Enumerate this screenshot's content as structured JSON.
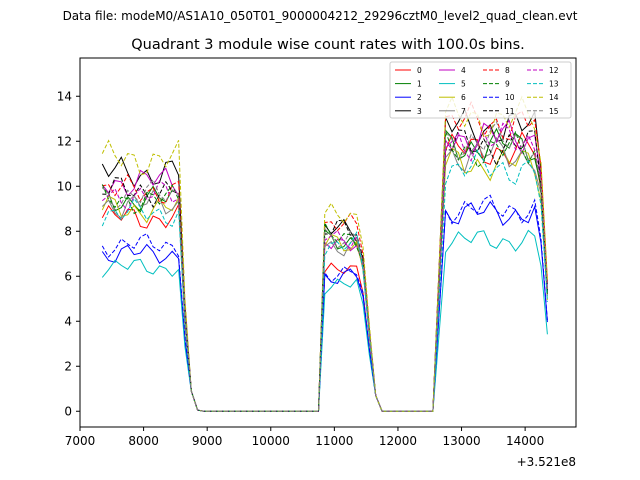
{
  "chart_data": {
    "type": "line",
    "suptitle": "Data file: modeM0/AS1A10_050T01_9000004212_29296cztM0_level2_quad_clean.evt",
    "title": "Quadrant 3 module wise count rates with 100.0s bins.",
    "xlabel": "",
    "ylabel": "",
    "x_offset_label": "+3.521e8",
    "xlim": [
      7000,
      14800
    ],
    "ylim": [
      -0.7,
      15.7
    ],
    "x_ticks": [
      7000,
      8000,
      9000,
      10000,
      11000,
      12000,
      13000,
      14000
    ],
    "x_tick_labels": [
      "7000",
      "8000",
      "9000",
      "10000",
      "11000",
      "12000",
      "13000",
      "14000"
    ],
    "y_ticks": [
      0,
      2,
      4,
      6,
      8,
      10,
      12,
      14
    ],
    "y_tick_labels": [
      "0",
      "2",
      "4",
      "6",
      "8",
      "10",
      "12",
      "14"
    ],
    "legend_position": "top-right",
    "legend_columns": 4,
    "segments": [
      {
        "start": 7350,
        "n": 14,
        "step": 100
      },
      {
        "start": 8750,
        "n": 21,
        "step": 100
      },
      {
        "start": 10850,
        "n": 8,
        "step": 100
      },
      {
        "start": 11650,
        "n": 10,
        "step": 100
      },
      {
        "start": 12750,
        "n": 17,
        "step": 100
      }
    ],
    "series": [
      {
        "name": "0",
        "color": "#ff0000",
        "dash": false,
        "levels": [
          8.6,
          0,
          6.2,
          0,
          11.6
        ]
      },
      {
        "name": "1",
        "color": "#008000",
        "dash": false,
        "levels": [
          9.4,
          0,
          7.6,
          0,
          11.8
        ]
      },
      {
        "name": "2",
        "color": "#0000ff",
        "dash": false,
        "levels": [
          7.0,
          0,
          6.0,
          0,
          8.8
        ]
      },
      {
        "name": "3",
        "color": "#000000",
        "dash": false,
        "levels": [
          10.6,
          0,
          8.0,
          0,
          12.6
        ]
      },
      {
        "name": "4",
        "color": "#c000c0",
        "dash": false,
        "levels": [
          10.2,
          0,
          7.6,
          0,
          12.2
        ]
      },
      {
        "name": "5",
        "color": "#00bfbf",
        "dash": false,
        "levels": [
          6.4,
          0,
          5.6,
          0,
          7.6
        ]
      },
      {
        "name": "6",
        "color": "#bfbf00",
        "dash": false,
        "levels": [
          9.0,
          0,
          7.4,
          0,
          11.0
        ]
      },
      {
        "name": "7",
        "color": "#808080",
        "dash": false,
        "levels": [
          9.2,
          0,
          7.4,
          0,
          11.4
        ]
      },
      {
        "name": "8",
        "color": "#ff0000",
        "dash": true,
        "levels": [
          9.8,
          0,
          8.2,
          0,
          12.8
        ]
      },
      {
        "name": "9",
        "color": "#008000",
        "dash": true,
        "levels": [
          9.4,
          0,
          7.8,
          0,
          11.6
        ]
      },
      {
        "name": "10",
        "color": "#0000ff",
        "dash": true,
        "levels": [
          7.4,
          0,
          6.2,
          0,
          9.0
        ]
      },
      {
        "name": "11",
        "color": "#000000",
        "dash": true,
        "levels": [
          9.8,
          0,
          8.0,
          0,
          11.8
        ]
      },
      {
        "name": "12",
        "color": "#c000c0",
        "dash": true,
        "levels": [
          9.6,
          0,
          7.8,
          0,
          12.0
        ]
      },
      {
        "name": "13",
        "color": "#00bfbf",
        "dash": true,
        "levels": [
          8.8,
          0,
          7.4,
          0,
          10.8
        ]
      },
      {
        "name": "14",
        "color": "#bfbf00",
        "dash": true,
        "levels": [
          11.2,
          0,
          8.6,
          0,
          13.0
        ]
      },
      {
        "name": "15",
        "color": "#808080",
        "dash": true,
        "levels": [
          9.6,
          0,
          7.8,
          0,
          12.0
        ]
      }
    ]
  }
}
